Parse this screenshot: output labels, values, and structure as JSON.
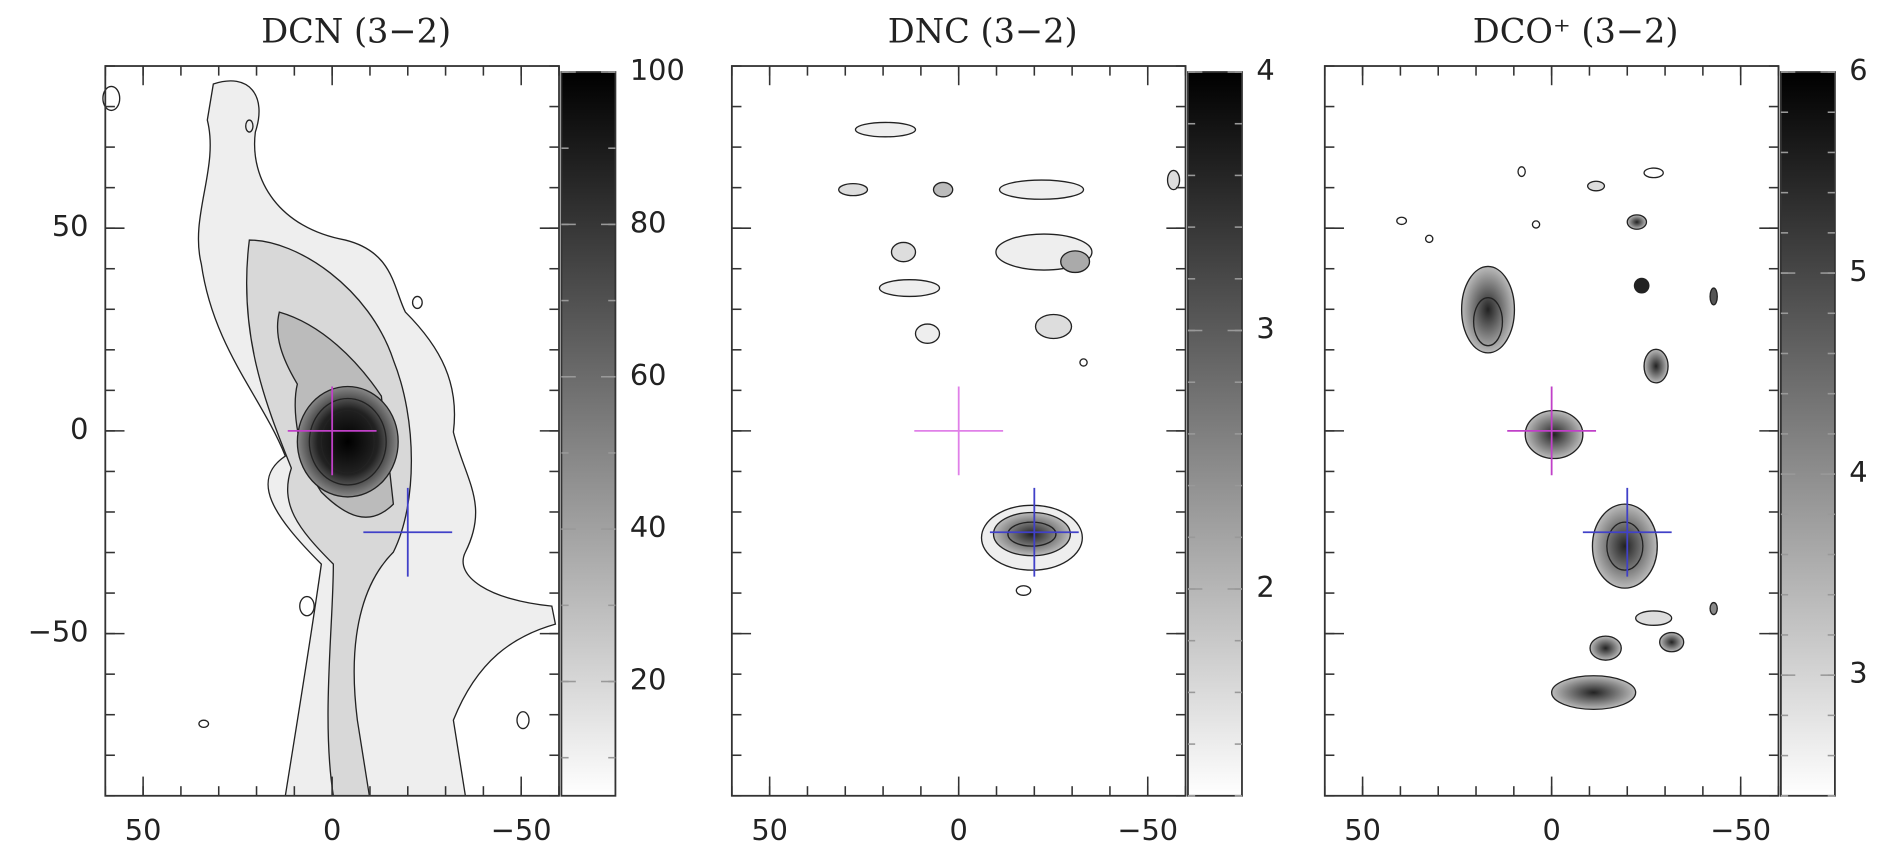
{
  "chart_data": [
    {
      "type": "contour_map",
      "title": "DCN (3−2)",
      "xlim": [
        60,
        -60
      ],
      "ylim": [
        -90,
        90
      ],
      "xticks": [
        50,
        0,
        {
          "value": -50,
          "label": "−50"
        }
      ],
      "yticks": [
        50,
        0,
        {
          "value": -50,
          "label": "−50"
        }
      ],
      "show_ytick_labels": true,
      "minor_tick_step": 10,
      "clim": [
        5,
        100
      ],
      "cticks": [
        20,
        40,
        60,
        80,
        100
      ],
      "cminor_step": 10,
      "markers": [
        {
          "x": 0,
          "y": 0,
          "color": "#c040c8"
        },
        {
          "x": -20,
          "y": -25,
          "color": "#4040c8"
        }
      ]
    },
    {
      "type": "contour_map",
      "title": "DNC (3−2)",
      "xlim": [
        60,
        -60
      ],
      "ylim": [
        -90,
        90
      ],
      "xticks": [
        50,
        0,
        {
          "value": -50,
          "label": "−50"
        }
      ],
      "yticks": [
        50,
        0,
        -50
      ],
      "show_ytick_labels": false,
      "minor_tick_step": 10,
      "clim": [
        1.2,
        4
      ],
      "cticks": [
        2,
        3,
        4
      ],
      "cminor_step": 0.2,
      "markers": [
        {
          "x": 0,
          "y": 0,
          "color": "#e080e8"
        },
        {
          "x": -20,
          "y": -25,
          "color": "#4040c8"
        }
      ]
    },
    {
      "type": "contour_map",
      "title": "DCO⁺ (3−2)",
      "xlim": [
        60,
        -60
      ],
      "ylim": [
        -90,
        90
      ],
      "xticks": [
        50,
        0,
        {
          "value": -50,
          "label": "−50"
        }
      ],
      "yticks": [
        50,
        0,
        -50
      ],
      "show_ytick_labels": false,
      "minor_tick_step": 10,
      "clim": [
        2.4,
        6
      ],
      "cticks": [
        3,
        4,
        5,
        6
      ],
      "cminor_step": 0.2,
      "markers": [
        {
          "x": 0,
          "y": 0,
          "color": "#c040c8"
        },
        {
          "x": -20,
          "y": -25,
          "color": "#4040c8"
        }
      ]
    }
  ]
}
